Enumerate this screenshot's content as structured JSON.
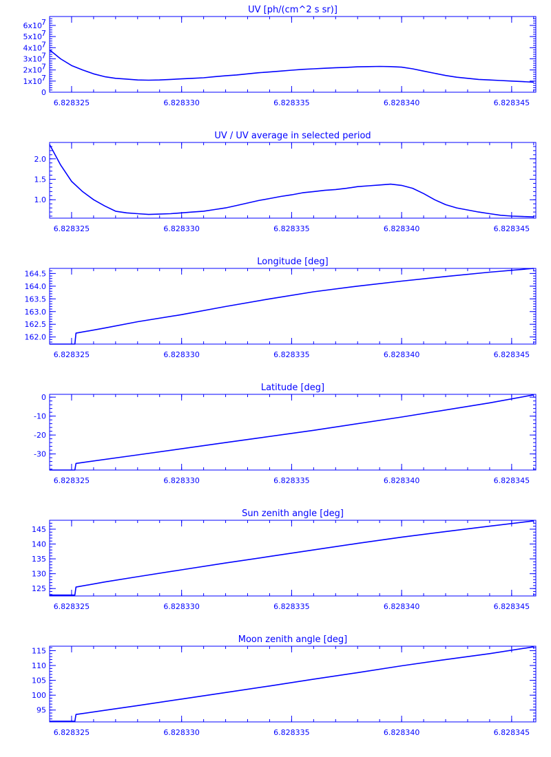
{
  "chart_data": [
    {
      "type": "line",
      "title": "UV [ph/(cm^2 s sr)]",
      "xlim": [
        6.828324,
        6.8283461
      ],
      "ylim": [
        0,
        68000000.0
      ],
      "x_ticks": [
        6.828325,
        6.82833,
        6.828335,
        6.82834,
        6.828345
      ],
      "x_tick_labels": [
        "6.828325",
        "6.828330",
        "6.828335",
        "6.828340",
        "6.828345"
      ],
      "y_ticks": [
        0,
        10000000.0,
        20000000.0,
        30000000.0,
        40000000.0,
        50000000.0,
        60000000.0
      ],
      "y_tick_labels": [
        "0",
        "1x10",
        "2x10",
        "3x10",
        "4x10",
        "5x10",
        "6x10"
      ],
      "y_tick_exponent": "7",
      "series": [
        {
          "x": [
            6.828324,
            6.8283245,
            6.828325,
            6.8283255,
            6.828326,
            6.8283265,
            6.828327,
            6.8283275,
            6.828328,
            6.8283285,
            6.828329,
            6.8283295,
            6.82833,
            6.8283305,
            6.828331,
            6.8283315,
            6.828332,
            6.8283325,
            6.828333,
            6.8283335,
            6.828334,
            6.8283345,
            6.828335,
            6.8283355,
            6.828336,
            6.8283365,
            6.828337,
            6.8283375,
            6.828338,
            6.8283385,
            6.828339,
            6.8283395,
            6.82834,
            6.8283405,
            6.828341,
            6.8283415,
            6.828342,
            6.8283425,
            6.828343,
            6.8283435,
            6.828344,
            6.8283445,
            6.828345,
            6.8283455,
            6.828346
          ],
          "y": [
            38000000,
            30000000,
            24000000,
            20000000,
            16500000,
            14000000,
            12500000,
            11800000,
            11000000,
            10800000,
            11000000,
            11500000,
            12000000,
            12500000,
            13000000,
            14000000,
            14800000,
            15500000,
            16500000,
            17500000,
            18200000,
            19000000,
            19800000,
            20500000,
            21000000,
            21500000,
            22000000,
            22300000,
            22800000,
            23000000,
            23200000,
            23000000,
            22500000,
            21000000,
            19000000,
            17000000,
            15000000,
            13500000,
            12500000,
            11500000,
            11000000,
            10500000,
            10000000,
            9500000,
            9000000
          ]
        }
      ]
    },
    {
      "type": "line",
      "title": "UV / UV average in selected period",
      "xlim": [
        6.828324,
        6.8283461
      ],
      "ylim": [
        0.55,
        2.4
      ],
      "x_ticks": [
        6.828325,
        6.82833,
        6.828335,
        6.82834,
        6.828345
      ],
      "x_tick_labels": [
        "6.828325",
        "6.828330",
        "6.828335",
        "6.828340",
        "6.828345"
      ],
      "y_ticks": [
        1.0,
        1.5,
        2.0
      ],
      "y_tick_labels": [
        "1.0",
        "1.5",
        "2.0"
      ],
      "series": [
        {
          "x": [
            6.828324,
            6.8283245,
            6.828325,
            6.8283255,
            6.828326,
            6.8283265,
            6.828327,
            6.8283275,
            6.828328,
            6.8283285,
            6.828329,
            6.8283295,
            6.82833,
            6.8283305,
            6.828331,
            6.8283315,
            6.828332,
            6.8283325,
            6.828333,
            6.8283335,
            6.828334,
            6.8283345,
            6.828335,
            6.8283355,
            6.828336,
            6.8283365,
            6.828337,
            6.8283375,
            6.828338,
            6.8283385,
            6.828339,
            6.8283395,
            6.82834,
            6.8283405,
            6.828341,
            6.8283415,
            6.828342,
            6.8283425,
            6.828343,
            6.8283435,
            6.828344,
            6.8283445,
            6.828345,
            6.8283455,
            6.828346
          ],
          "y": [
            2.35,
            1.85,
            1.45,
            1.2,
            1.0,
            0.85,
            0.72,
            0.68,
            0.66,
            0.64,
            0.65,
            0.66,
            0.68,
            0.7,
            0.72,
            0.76,
            0.8,
            0.86,
            0.92,
            0.98,
            1.03,
            1.08,
            1.12,
            1.17,
            1.2,
            1.23,
            1.25,
            1.28,
            1.32,
            1.34,
            1.36,
            1.38,
            1.35,
            1.28,
            1.15,
            1.0,
            0.88,
            0.8,
            0.75,
            0.7,
            0.66,
            0.62,
            0.6,
            0.59,
            0.58
          ]
        }
      ]
    },
    {
      "type": "line",
      "title": "Longitude [deg]",
      "xlim": [
        6.828324,
        6.8283461
      ],
      "ylim": [
        161.72,
        164.7
      ],
      "x_ticks": [
        6.828325,
        6.82833,
        6.828335,
        6.82834,
        6.828345
      ],
      "x_tick_labels": [
        "6.828325",
        "6.828330",
        "6.828335",
        "6.828340",
        "6.828345"
      ],
      "y_ticks": [
        162.0,
        162.5,
        163.0,
        163.5,
        164.0,
        164.5
      ],
      "y_tick_labels": [
        "162.0",
        "162.5",
        "163.0",
        "163.5",
        "164.0",
        "164.5"
      ],
      "series": [
        {
          "x": [
            6.828324,
            6.82832515,
            6.8283252,
            6.8283265,
            6.828328,
            6.82833,
            6.828332,
            6.828334,
            6.828336,
            6.828338,
            6.82834,
            6.828342,
            6.828344,
            6.828346
          ],
          "y": [
            161.72,
            161.72,
            162.15,
            162.35,
            162.6,
            162.88,
            163.2,
            163.5,
            163.78,
            164.0,
            164.2,
            164.38,
            164.55,
            164.7
          ]
        }
      ]
    },
    {
      "type": "line",
      "title": "Latitude [deg]",
      "xlim": [
        6.828324,
        6.8283461
      ],
      "ylim": [
        -38.5,
        1.5
      ],
      "x_ticks": [
        6.828325,
        6.82833,
        6.828335,
        6.82834,
        6.828345
      ],
      "x_tick_labels": [
        "6.828325",
        "6.828330",
        "6.828335",
        "6.828340",
        "6.828345"
      ],
      "y_ticks": [
        -30,
        -20,
        -10,
        0
      ],
      "y_tick_labels": [
        "-30",
        "-20",
        "-10",
        "0"
      ],
      "series": [
        {
          "x": [
            6.828324,
            6.82832515,
            6.8283252,
            6.828328,
            6.828332,
            6.828336,
            6.82834,
            6.828344,
            6.828346
          ],
          "y": [
            -38.5,
            -38.5,
            -35.0,
            -30.5,
            -24.0,
            -17.5,
            -10.5,
            -3.0,
            1.2
          ]
        }
      ]
    },
    {
      "type": "line",
      "title": "Sun zenith angle [deg]",
      "xlim": [
        6.828324,
        6.8283461
      ],
      "ylim": [
        122.5,
        148.0
      ],
      "x_ticks": [
        6.828325,
        6.82833,
        6.828335,
        6.82834,
        6.828345
      ],
      "x_tick_labels": [
        "6.828325",
        "6.828330",
        "6.828335",
        "6.828340",
        "6.828345"
      ],
      "y_ticks": [
        125,
        130,
        135,
        140,
        145
      ],
      "y_tick_labels": [
        "125",
        "130",
        "135",
        "140",
        "145"
      ],
      "series": [
        {
          "x": [
            6.828324,
            6.82832515,
            6.8283252,
            6.8283265,
            6.828328,
            6.82833,
            6.828332,
            6.828334,
            6.828336,
            6.828338,
            6.82834,
            6.828342,
            6.828344,
            6.828346
          ],
          "y": [
            122.8,
            122.8,
            125.5,
            127.2,
            129.0,
            131.3,
            133.6,
            135.8,
            138.0,
            140.2,
            142.3,
            144.2,
            146.0,
            147.8
          ]
        }
      ]
    },
    {
      "type": "line",
      "title": "Moon zenith angle [deg]",
      "xlim": [
        6.828324,
        6.8283461
      ],
      "ylim": [
        91.0,
        116.5
      ],
      "x_ticks": [
        6.828325,
        6.82833,
        6.828335,
        6.82834,
        6.828345
      ],
      "x_tick_labels": [
        "6.828325",
        "6.828330",
        "6.828335",
        "6.828340",
        "6.828345"
      ],
      "y_ticks": [
        95,
        100,
        105,
        110,
        115
      ],
      "y_tick_labels": [
        "95",
        "100",
        "105",
        "110",
        "115"
      ],
      "series": [
        {
          "x": [
            6.828324,
            6.82832515,
            6.8283252,
            6.8283265,
            6.828328,
            6.82833,
            6.828332,
            6.828334,
            6.828336,
            6.828338,
            6.82834,
            6.828342,
            6.828344,
            6.828346
          ],
          "y": [
            91.2,
            91.2,
            93.5,
            94.9,
            96.5,
            98.7,
            100.9,
            103.1,
            105.4,
            107.6,
            109.9,
            112.0,
            114.0,
            116.3
          ]
        }
      ]
    }
  ]
}
